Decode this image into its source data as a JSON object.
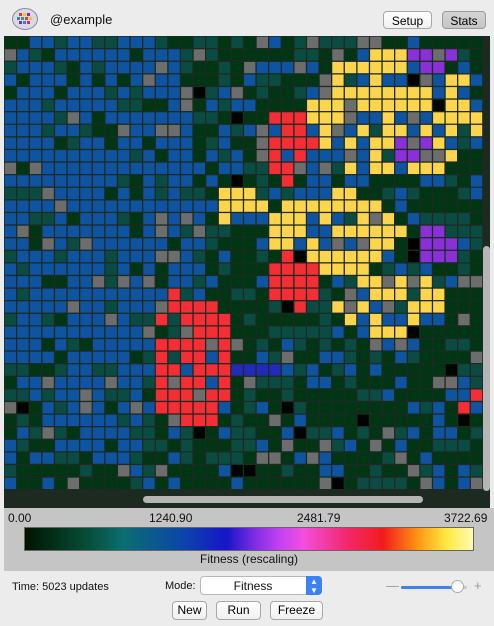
{
  "window": {
    "org_name": "@example"
  },
  "toolbar": {
    "setup_label": "Setup",
    "stats_label": "Stats"
  },
  "icons": {
    "logo": "petri-dish-icon",
    "mode_arrows": "up-down-arrows-icon"
  },
  "colors": {
    "black": "#000400",
    "dark_green": "#013615",
    "teal": "#0a4c42",
    "blue": "#0e54a0",
    "gray": "#6d6d6d",
    "yellow": "#fdd54c",
    "red": "#f52d35",
    "purple": "#8a30d8",
    "indigo": "#222ab8"
  },
  "scale": {
    "ticks": [
      "0.00",
      "1240.90",
      "2481.79",
      "3722.69"
    ],
    "caption": "Fitness (rescaling)"
  },
  "status": {
    "time": "Time: 5023 updates"
  },
  "mode": {
    "label": "Mode:",
    "value": "Fitness"
  },
  "zoom": {
    "minus": "—",
    "plus": "+",
    "level": 0.85
  },
  "controls": {
    "new_label": "New",
    "run_label": "Run",
    "freeze_label": "Freeze"
  }
}
